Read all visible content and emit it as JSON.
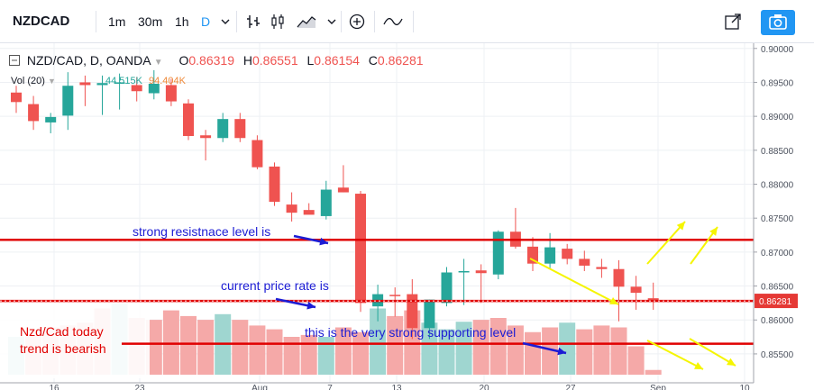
{
  "toolbar": {
    "symbol": "NZDCAD",
    "intervals": [
      "1m",
      "30m",
      "1h",
      "D"
    ],
    "active_interval": "D",
    "icons": [
      "chevron-down-icon",
      "bar-chart-icon",
      "candlestick-icon",
      "area-chart-icon",
      "chevron-down-icon",
      "plus-circle-icon",
      "compare-wave-icon",
      "fullscreen-icon",
      "camera-icon"
    ]
  },
  "legend": {
    "symbol": "NZD/CAD, D, OANDA",
    "o_label": "O",
    "o": "0.86319",
    "h_label": "H",
    "h": "0.86551",
    "l_label": "L",
    "l": "0.86154",
    "c_label": "C",
    "c": "0.86281",
    "vol_label": "Vol (20)",
    "vol_value": "94.404K",
    "vol_value2": "44.515K"
  },
  "price_tag": "0.86281",
  "annotations": {
    "resistance": "strong resistnace level is",
    "current": "current price rate is",
    "support": "this is the very strong supporting level",
    "trend1": "Nzd/Cad today",
    "trend2": "trend is bearish"
  },
  "colors": {
    "up": "#26a69a",
    "down": "#ef5350",
    "annotation_line": "#e00000",
    "annotation_text_blue": "#1c1cd4",
    "annotation_text_red": "#e00000",
    "arrow_yellow": "#f5f500",
    "price_tag": "#e53935"
  },
  "chart_data": {
    "type": "candlestick",
    "symbol": "NZD/CAD",
    "timeframe": "D",
    "y_range": [
      0.853,
      0.9005
    ],
    "y_ticks": [
      "0.90000",
      "0.89500",
      "0.89000",
      "0.88500",
      "0.88000",
      "0.87500",
      "0.87000",
      "0.86500",
      "0.86000",
      "0.85500"
    ],
    "x_ticks": [
      "16",
      "23",
      "Aug",
      "7",
      "13",
      "20",
      "27",
      "Sep",
      "10"
    ],
    "candles": [
      {
        "o": 0.8935,
        "h": 0.8945,
        "l": 0.8905,
        "c": 0.8921
      },
      {
        "o": 0.8918,
        "h": 0.893,
        "l": 0.888,
        "c": 0.8893
      },
      {
        "o": 0.8891,
        "h": 0.8905,
        "l": 0.8875,
        "c": 0.8899
      },
      {
        "o": 0.8901,
        "h": 0.8965,
        "l": 0.888,
        "c": 0.8945
      },
      {
        "o": 0.895,
        "h": 0.896,
        "l": 0.8915,
        "c": 0.8946
      },
      {
        "o": 0.8946,
        "h": 0.896,
        "l": 0.8902,
        "c": 0.8949
      },
      {
        "o": 0.8948,
        "h": 0.8963,
        "l": 0.891,
        "c": 0.895
      },
      {
        "o": 0.8946,
        "h": 0.8958,
        "l": 0.8922,
        "c": 0.8937
      },
      {
        "o": 0.8934,
        "h": 0.8968,
        "l": 0.8925,
        "c": 0.8948
      },
      {
        "o": 0.8946,
        "h": 0.8955,
        "l": 0.8915,
        "c": 0.8922
      },
      {
        "o": 0.8919,
        "h": 0.8925,
        "l": 0.8865,
        "c": 0.8871
      },
      {
        "o": 0.8872,
        "h": 0.888,
        "l": 0.8835,
        "c": 0.8868
      },
      {
        "o": 0.8868,
        "h": 0.8905,
        "l": 0.8862,
        "c": 0.8896
      },
      {
        "o": 0.8896,
        "h": 0.8905,
        "l": 0.8862,
        "c": 0.8868
      },
      {
        "o": 0.8865,
        "h": 0.8872,
        "l": 0.8822,
        "c": 0.8825
      },
      {
        "o": 0.8826,
        "h": 0.8832,
        "l": 0.8768,
        "c": 0.8774
      },
      {
        "o": 0.877,
        "h": 0.8788,
        "l": 0.8745,
        "c": 0.8758
      },
      {
        "o": 0.8762,
        "h": 0.8772,
        "l": 0.8756,
        "c": 0.8755
      },
      {
        "o": 0.8753,
        "h": 0.8805,
        "l": 0.8748,
        "c": 0.8792
      },
      {
        "o": 0.8795,
        "h": 0.8828,
        "l": 0.8788,
        "c": 0.8788
      },
      {
        "o": 0.8786,
        "h": 0.879,
        "l": 0.8612,
        "c": 0.8625
      },
      {
        "o": 0.862,
        "h": 0.8652,
        "l": 0.8598,
        "c": 0.8638
      },
      {
        "o": 0.8637,
        "h": 0.8648,
        "l": 0.8605,
        "c": 0.8636
      },
      {
        "o": 0.8638,
        "h": 0.866,
        "l": 0.8572,
        "c": 0.8588
      },
      {
        "o": 0.8588,
        "h": 0.863,
        "l": 0.8572,
        "c": 0.863
      },
      {
        "o": 0.8625,
        "h": 0.8678,
        "l": 0.862,
        "c": 0.867
      },
      {
        "o": 0.867,
        "h": 0.869,
        "l": 0.8622,
        "c": 0.8672
      },
      {
        "o": 0.8673,
        "h": 0.8682,
        "l": 0.8625,
        "c": 0.8669
      },
      {
        "o": 0.8667,
        "h": 0.8732,
        "l": 0.866,
        "c": 0.873
      },
      {
        "o": 0.873,
        "h": 0.8765,
        "l": 0.8705,
        "c": 0.8708
      },
      {
        "o": 0.8708,
        "h": 0.8722,
        "l": 0.8672,
        "c": 0.8683
      },
      {
        "o": 0.8683,
        "h": 0.8728,
        "l": 0.8675,
        "c": 0.8707
      },
      {
        "o": 0.8705,
        "h": 0.8712,
        "l": 0.8682,
        "c": 0.869
      },
      {
        "o": 0.869,
        "h": 0.8702,
        "l": 0.8672,
        "c": 0.868
      },
      {
        "o": 0.8678,
        "h": 0.869,
        "l": 0.8662,
        "c": 0.8675
      },
      {
        "o": 0.8675,
        "h": 0.8688,
        "l": 0.8598,
        "c": 0.8649
      },
      {
        "o": 0.8649,
        "h": 0.8665,
        "l": 0.8615,
        "c": 0.864
      },
      {
        "o": 0.8632,
        "h": 0.8655,
        "l": 0.8615,
        "c": 0.8628
      }
    ],
    "volume": [
      {
        "v": 40,
        "up": true
      },
      {
        "v": 47,
        "up": false
      },
      {
        "v": 50,
        "up": false
      },
      {
        "v": 52,
        "up": false
      },
      {
        "v": 55,
        "up": false
      },
      {
        "v": 70,
        "up": false
      },
      {
        "v": 75,
        "up": true
      },
      {
        "v": 60,
        "up": false
      },
      {
        "v": 58,
        "up": false
      },
      {
        "v": 68,
        "up": false
      },
      {
        "v": 62,
        "up": false
      },
      {
        "v": 58,
        "up": false
      },
      {
        "v": 64,
        "up": true
      },
      {
        "v": 58,
        "up": false
      },
      {
        "v": 52,
        "up": false
      },
      {
        "v": 48,
        "up": false
      },
      {
        "v": 40,
        "up": false
      },
      {
        "v": 42,
        "up": false
      },
      {
        "v": 40,
        "up": true
      },
      {
        "v": 50,
        "up": false
      },
      {
        "v": 45,
        "up": false
      },
      {
        "v": 70,
        "up": true
      },
      {
        "v": 62,
        "up": false
      },
      {
        "v": 68,
        "up": false
      },
      {
        "v": 55,
        "up": true
      },
      {
        "v": 48,
        "up": true
      },
      {
        "v": 56,
        "up": true
      },
      {
        "v": 58,
        "up": false
      },
      {
        "v": 60,
        "up": false
      },
      {
        "v": 52,
        "up": false
      },
      {
        "v": 45,
        "up": false
      },
      {
        "v": 50,
        "up": false
      },
      {
        "v": 55,
        "up": true
      },
      {
        "v": 48,
        "up": false
      },
      {
        "v": 52,
        "up": false
      },
      {
        "v": 50,
        "up": false
      },
      {
        "v": 30,
        "up": false
      },
      {
        "v": 5,
        "up": false
      }
    ],
    "levels": {
      "resistance": 0.8718,
      "current": 0.86281,
      "support": 0.8565
    }
  }
}
